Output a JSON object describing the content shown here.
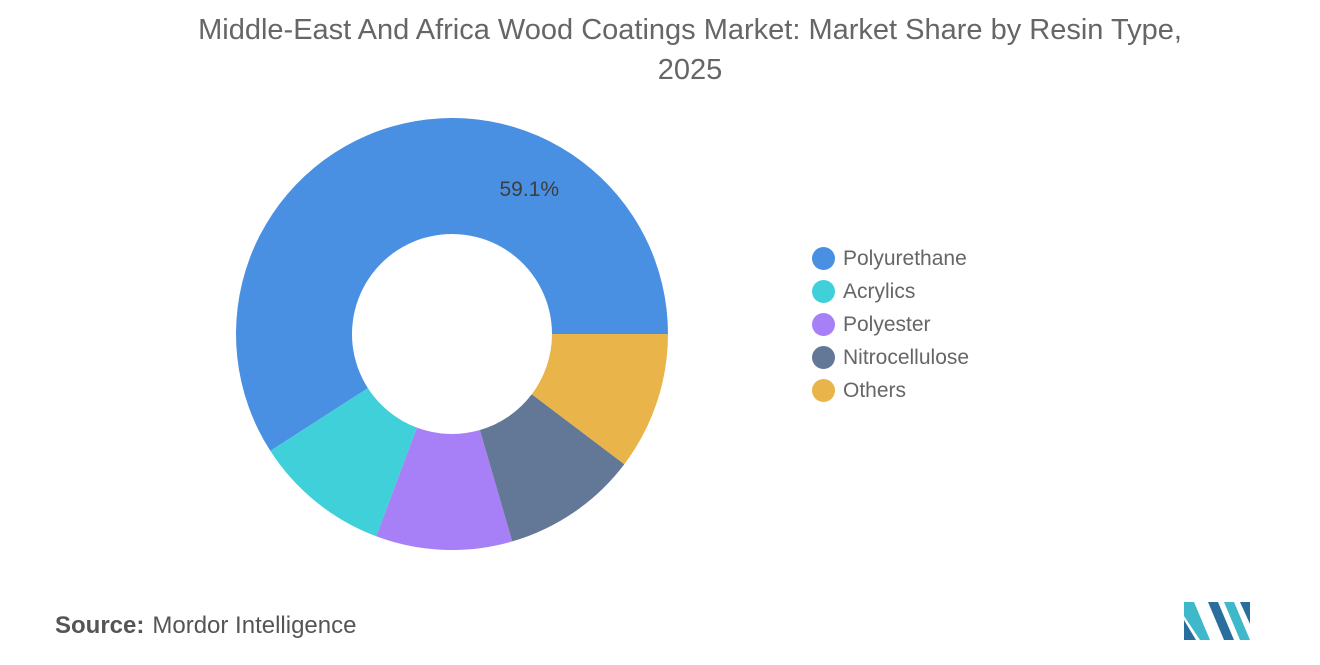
{
  "title_line1": "Middle-East And Africa Wood Coatings Market: Market Share by Resin Type,",
  "title_line2": "2025",
  "source": {
    "label": "Source:",
    "value": "Mordor Intelligence"
  },
  "chart_data": {
    "type": "pie",
    "donut": true,
    "title": "Middle-East And Africa Wood Coatings Market: Market Share by Resin Type, 2025",
    "categories": [
      "Polyurethane",
      "Acrylics",
      "Polyester",
      "Nitrocellulose",
      "Others"
    ],
    "values": [
      59.1,
      10.2,
      10.2,
      10.2,
      10.3
    ],
    "colors": [
      "#4a90e2",
      "#40d0da",
      "#a77ff7",
      "#637796",
      "#e9b449"
    ],
    "data_labels": [
      "59.1%",
      "",
      "",
      "",
      ""
    ],
    "legend_position": "right"
  }
}
